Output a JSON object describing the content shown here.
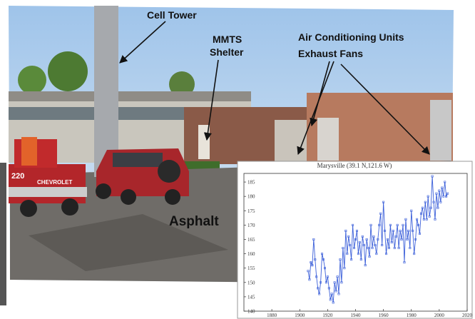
{
  "annotations": [
    "Cell Tower",
    "MMTS",
    "Shelter",
    "Air Conditioning Units",
    "Exhaust Fans",
    "Asphalt"
  ],
  "vehicle_text": [
    "220",
    "CHEVROLET"
  ],
  "chart_data": {
    "type": "line",
    "title": "Marysville (39.1 N,121.6 W)",
    "x": [
      1906,
      1907,
      1908,
      1909,
      1910,
      1911,
      1912,
      1913,
      1914,
      1915,
      1916,
      1917,
      1918,
      1919,
      1920,
      1921,
      1922,
      1923,
      1924,
      1925,
      1926,
      1927,
      1928,
      1929,
      1930,
      1931,
      1932,
      1933,
      1934,
      1935,
      1936,
      1937,
      1938,
      1939,
      1940,
      1941,
      1942,
      1943,
      1944,
      1945,
      1946,
      1947,
      1948,
      1949,
      1950,
      1951,
      1952,
      1953,
      1954,
      1955,
      1956,
      1957,
      1958,
      1959,
      1960,
      1961,
      1962,
      1963,
      1964,
      1965,
      1966,
      1967,
      1968,
      1969,
      1970,
      1971,
      1972,
      1973,
      1974,
      1975,
      1976,
      1977,
      1978,
      1979,
      1980,
      1981,
      1982,
      1983,
      1984,
      1985,
      1986,
      1987,
      1988,
      1989,
      1990,
      1991,
      1992,
      1993,
      1994,
      1995,
      1996,
      1997,
      1998,
      1999,
      2000,
      2001,
      2002,
      2003,
      2004,
      2005,
      2006
    ],
    "series": [
      {
        "color": "#3b5fd9",
        "values": [
          154,
          151,
          157,
          156,
          165,
          158,
          152,
          148,
          146,
          150,
          160,
          158,
          155,
          150,
          152,
          148,
          144,
          146,
          143,
          150,
          147,
          152,
          146,
          158,
          150,
          162,
          155,
          168,
          160,
          166,
          163,
          158,
          170,
          162,
          165,
          168,
          160,
          164,
          158,
          166,
          163,
          156,
          165,
          162,
          159,
          170,
          162,
          166,
          163,
          160,
          165,
          170,
          174,
          163,
          178,
          168,
          160,
          165,
          162,
          170,
          164,
          168,
          162,
          166,
          170,
          162,
          168,
          165,
          170,
          157,
          172,
          165,
          168,
          162,
          175,
          168,
          160,
          165,
          172,
          170,
          167,
          174,
          176,
          172,
          178,
          172,
          180,
          173,
          176,
          187,
          178,
          172,
          181,
          176,
          182,
          178,
          183,
          180,
          185,
          180,
          181
        ]
      }
    ],
    "xlim": [
      1860,
      2020
    ],
    "xticks": [
      1880,
      1900,
      1920,
      1940,
      1960,
      1980,
      2000,
      2020
    ],
    "ylim": [
      140,
      188
    ],
    "yticks": [
      140,
      145,
      150,
      155,
      160,
      165,
      170,
      175,
      180,
      185
    ]
  }
}
